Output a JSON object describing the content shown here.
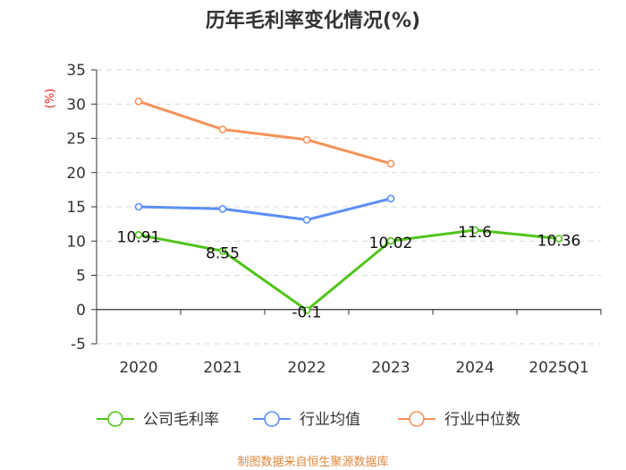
{
  "chart_data": {
    "type": "line",
    "title": "历年毛利率变化情况(%)",
    "ylabel": "(%)",
    "categories": [
      "2020",
      "2021",
      "2022",
      "2023",
      "2024",
      "2025Q1"
    ],
    "ylim": [
      -5,
      35
    ],
    "yticks": [
      -5,
      0,
      5,
      10,
      15,
      20,
      25,
      30,
      35
    ],
    "grid": true,
    "legend_position": "bottom",
    "series": [
      {
        "name": "公司毛利率",
        "color": "#52c41a",
        "values": [
          10.91,
          8.55,
          -0.1,
          10.02,
          11.6,
          10.36
        ],
        "labels": [
          "10.91",
          "8.55",
          "-0.1",
          "10.02",
          "11.6",
          "10.36"
        ]
      },
      {
        "name": "行业均值",
        "color": "#5b8ff9",
        "values": [
          15.0,
          14.7,
          13.1,
          16.2,
          null,
          null
        ]
      },
      {
        "name": "行业中位数",
        "color": "#f4925a",
        "values": [
          30.4,
          26.3,
          24.8,
          21.3,
          null,
          null
        ]
      }
    ],
    "source": "制图数据来自恒生聚源数据库"
  }
}
